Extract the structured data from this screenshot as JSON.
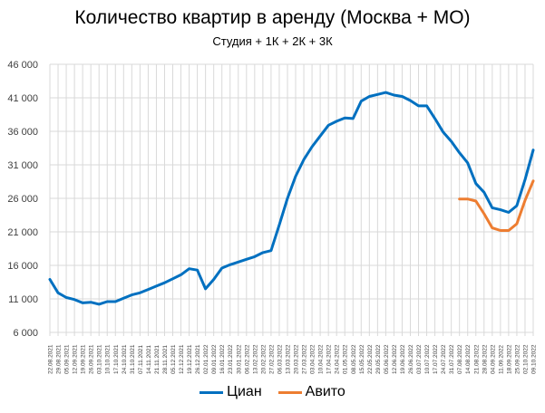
{
  "chart": {
    "title": "Количество квартир в аренду (Москва + МО)",
    "subtitle": "Студия + 1К + 2К + 3К"
  },
  "legend": [
    {
      "name": "Циан",
      "color": "#0070C0"
    },
    {
      "name": "Авито",
      "color": "#ED7D31"
    }
  ],
  "chart_data": {
    "type": "line",
    "title": "Количество квартир в аренду (Москва + МО)",
    "subtitle": "Студия + 1К + 2К + 3К",
    "xlabel": "",
    "ylabel": "",
    "ylim": [
      6000,
      46000
    ],
    "yticks": [
      6000,
      11000,
      16000,
      21000,
      26000,
      31000,
      36000,
      41000,
      46000
    ],
    "ytick_labels": [
      "6 000",
      "11 000",
      "16 000",
      "21 000",
      "26 000",
      "31 000",
      "36 000",
      "41 000",
      "46 000"
    ],
    "grid": true,
    "legend_position": "bottom",
    "x": [
      "22.08.2021",
      "29.08.2021",
      "05.09.2021",
      "12.09.2021",
      "19.09.2021",
      "26.09.2021",
      "03.10.2021",
      "10.10.2021",
      "17.10.2021",
      "24.10.2021",
      "31.10.2021",
      "07.11.2021",
      "14.11.2021",
      "21.11.2021",
      "28.11.2021",
      "05.12.2021",
      "12.12.2021",
      "19.12.2021",
      "26.12.2021",
      "02.01.2022",
      "09.01.2022",
      "16.01.2022",
      "23.01.2022",
      "30.01.2022",
      "06.02.2022",
      "13.02.2022",
      "20.02.2022",
      "27.02.2022",
      "06.03.2022",
      "13.03.2022",
      "20.03.2022",
      "27.03.2022",
      "03.04.2022",
      "10.04.2022",
      "17.04.2022",
      "24.04.2022",
      "01.05.2022",
      "08.05.2022",
      "15.05.2022",
      "22.05.2022",
      "29.05.2022",
      "05.06.2022",
      "12.06.2022",
      "19.06.2022",
      "26.06.2022",
      "03.07.2022",
      "10.07.2022",
      "17.07.2022",
      "24.07.2022",
      "31.07.2022",
      "07.08.2022",
      "14.08.2022",
      "21.08.2022",
      "28.08.2022",
      "04.09.2022",
      "11.09.2022",
      "18.09.2022",
      "25.09.2022",
      "02.10.2022",
      "09.10.2022"
    ],
    "series": [
      {
        "name": "Циан",
        "color": "#0070C0",
        "values": [
          13900,
          11900,
          11200,
          10900,
          10400,
          10500,
          10200,
          10600,
          10600,
          11100,
          11600,
          11900,
          12400,
          12900,
          13400,
          14000,
          14600,
          15500,
          15300,
          12500,
          13900,
          15600,
          16100,
          16500,
          16900,
          17300,
          17900,
          18200,
          22000,
          26000,
          29300,
          31800,
          33700,
          35300,
          36900,
          37500,
          38000,
          37900,
          40500,
          41200,
          41500,
          41800,
          41400,
          41200,
          40600,
          39800,
          39800,
          37900,
          35900,
          34500,
          32800,
          31300,
          28200,
          26900,
          24600,
          24300,
          23900,
          24900,
          28800,
          33200
        ]
      },
      {
        "name": "Авито",
        "color": "#ED7D31",
        "values": [
          null,
          null,
          null,
          null,
          null,
          null,
          null,
          null,
          null,
          null,
          null,
          null,
          null,
          null,
          null,
          null,
          null,
          null,
          null,
          null,
          null,
          null,
          null,
          null,
          null,
          null,
          null,
          null,
          null,
          null,
          null,
          null,
          null,
          null,
          null,
          null,
          null,
          null,
          null,
          null,
          null,
          null,
          null,
          null,
          null,
          null,
          null,
          null,
          null,
          null,
          25900,
          25900,
          25600,
          23700,
          21600,
          21200,
          21200,
          22200,
          25700,
          28600
        ]
      }
    ]
  }
}
